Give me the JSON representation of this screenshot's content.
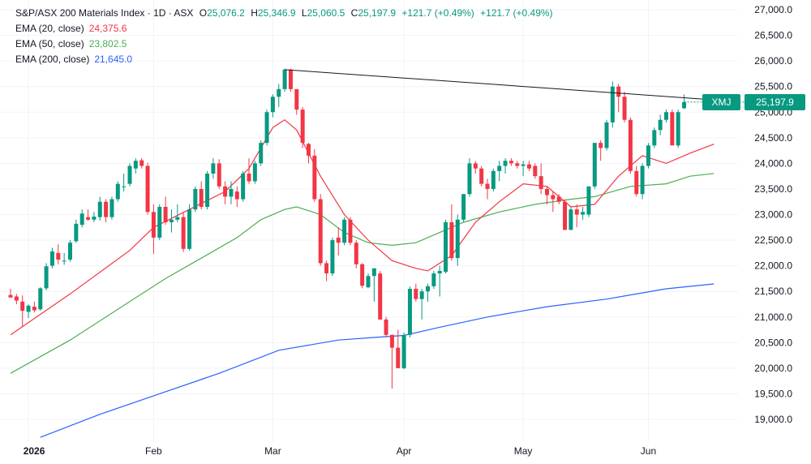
{
  "legend": {
    "title": "S&P/ASX 200 Materials Index · 1D · ASX",
    "open_key": "O",
    "open": "25,076.2",
    "high_key": "H",
    "high": "25,346.9",
    "low_key": "L",
    "low": "25,060.5",
    "close_key": "C",
    "close": "25,197.9",
    "change1": "+121.7 (+0.49%)",
    "change2": "+121.7 (+0.49%)",
    "ema20_label": "EMA (20, close)",
    "ema20_value": "24,375.6",
    "ema50_label": "EMA (50, close)",
    "ema50_value": "23,802.5",
    "ema200_label": "EMA (200, close)",
    "ema200_value": "21,645.0"
  },
  "price_tag": {
    "symbol": "XMJ",
    "value": "25,197.9"
  },
  "colors": {
    "up": "#089981",
    "down": "#f23645",
    "ema20": "#f23645",
    "ema50": "#4caf50",
    "ema200": "#2962ff",
    "trendline": "#131722",
    "legend_values_up": "#089981"
  },
  "chart_data": {
    "type": "candlestick",
    "y_ticks": [
      "27,000.0",
      "26,500.0",
      "26,000.0",
      "25,500.0",
      "25,000.0",
      "24,500.0",
      "24,000.0",
      "23,500.0",
      "23,000.0",
      "22,500.0",
      "22,000.0",
      "21,500.0",
      "21,000.0",
      "20,500.0",
      "20,000.0",
      "19,500.0",
      "19,000.0"
    ],
    "y_tick_values": [
      27000,
      26500,
      26000,
      25500,
      25000,
      24500,
      24000,
      23500,
      23000,
      22500,
      22000,
      21500,
      21000,
      20500,
      20000,
      19500,
      19000
    ],
    "ylim": [
      18650,
      27150
    ],
    "x_ticks": [
      {
        "label": "2026",
        "bar": 3,
        "bold": true
      },
      {
        "label": "Feb",
        "bar": 24,
        "bold": false
      },
      {
        "label": "Mar",
        "bar": 44,
        "bold": false
      },
      {
        "label": "Apr",
        "bar": 66,
        "bold": false
      },
      {
        "label": "May",
        "bar": 86,
        "bold": false
      },
      {
        "label": "Jun",
        "bar": 107,
        "bold": false
      }
    ],
    "candles": [
      {
        "o": 21430,
        "h": 21550,
        "l": 21380,
        "c": 21380
      },
      {
        "o": 21400,
        "h": 21450,
        "l": 21250,
        "c": 21320
      },
      {
        "o": 21300,
        "h": 21420,
        "l": 20800,
        "c": 21120
      },
      {
        "o": 21100,
        "h": 21250,
        "l": 20980,
        "c": 21220
      },
      {
        "o": 21200,
        "h": 21300,
        "l": 21090,
        "c": 21130
      },
      {
        "o": 21150,
        "h": 21580,
        "l": 21120,
        "c": 21560
      },
      {
        "o": 21560,
        "h": 22050,
        "l": 21520,
        "c": 21990
      },
      {
        "o": 22000,
        "h": 22350,
        "l": 21950,
        "c": 22280
      },
      {
        "o": 22250,
        "h": 22420,
        "l": 22030,
        "c": 22120
      },
      {
        "o": 22100,
        "h": 22250,
        "l": 22020,
        "c": 22100
      },
      {
        "o": 22120,
        "h": 22500,
        "l": 22080,
        "c": 22450
      },
      {
        "o": 22480,
        "h": 22900,
        "l": 22450,
        "c": 22820
      },
      {
        "o": 22800,
        "h": 23100,
        "l": 22750,
        "c": 23020
      },
      {
        "o": 22950,
        "h": 23100,
        "l": 22880,
        "c": 22900
      },
      {
        "o": 22900,
        "h": 23050,
        "l": 22850,
        "c": 22960
      },
      {
        "o": 22950,
        "h": 23350,
        "l": 22880,
        "c": 23250
      },
      {
        "o": 23250,
        "h": 23300,
        "l": 22850,
        "c": 22950
      },
      {
        "o": 22950,
        "h": 23350,
        "l": 22900,
        "c": 23300
      },
      {
        "o": 23300,
        "h": 23650,
        "l": 23250,
        "c": 23600
      },
      {
        "o": 23550,
        "h": 23800,
        "l": 23450,
        "c": 23550
      },
      {
        "o": 23600,
        "h": 24000,
        "l": 23550,
        "c": 23950
      },
      {
        "o": 23900,
        "h": 24100,
        "l": 23800,
        "c": 24050
      },
      {
        "o": 24060,
        "h": 24100,
        "l": 23900,
        "c": 23950
      },
      {
        "o": 23950,
        "h": 24010,
        "l": 23000,
        "c": 23050
      },
      {
        "o": 23050,
        "h": 23200,
        "l": 22230,
        "c": 22550
      },
      {
        "o": 22550,
        "h": 23200,
        "l": 22500,
        "c": 23150
      },
      {
        "o": 23150,
        "h": 23350,
        "l": 22800,
        "c": 22850
      },
      {
        "o": 22850,
        "h": 23100,
        "l": 22650,
        "c": 22900
      },
      {
        "o": 22900,
        "h": 23200,
        "l": 22850,
        "c": 22950
      },
      {
        "o": 22950,
        "h": 23050,
        "l": 22270,
        "c": 22330
      },
      {
        "o": 22330,
        "h": 23200,
        "l": 22300,
        "c": 23100
      },
      {
        "o": 23100,
        "h": 23550,
        "l": 23050,
        "c": 23500
      },
      {
        "o": 23500,
        "h": 23650,
        "l": 23100,
        "c": 23150
      },
      {
        "o": 23150,
        "h": 23850,
        "l": 23100,
        "c": 23800
      },
      {
        "o": 23800,
        "h": 24100,
        "l": 23700,
        "c": 24000
      },
      {
        "o": 24000,
        "h": 24080,
        "l": 23500,
        "c": 23550
      },
      {
        "o": 23550,
        "h": 23650,
        "l": 23200,
        "c": 23350
      },
      {
        "o": 23350,
        "h": 23650,
        "l": 23200,
        "c": 23500
      },
      {
        "o": 23450,
        "h": 23550,
        "l": 23150,
        "c": 23300
      },
      {
        "o": 23300,
        "h": 23850,
        "l": 23250,
        "c": 23800
      },
      {
        "o": 23800,
        "h": 24100,
        "l": 23600,
        "c": 23650
      },
      {
        "o": 23650,
        "h": 24050,
        "l": 23600,
        "c": 24000
      },
      {
        "o": 24000,
        "h": 24450,
        "l": 23950,
        "c": 24400
      },
      {
        "o": 24400,
        "h": 25050,
        "l": 24350,
        "c": 25000
      },
      {
        "o": 25000,
        "h": 25350,
        "l": 24900,
        "c": 25300
      },
      {
        "o": 25300,
        "h": 25550,
        "l": 25100,
        "c": 25450
      },
      {
        "o": 25450,
        "h": 25850,
        "l": 25400,
        "c": 25830
      },
      {
        "o": 25830,
        "h": 25850,
        "l": 25400,
        "c": 25450
      },
      {
        "o": 25450,
        "h": 25450,
        "l": 24950,
        "c": 25050
      },
      {
        "o": 25050,
        "h": 25100,
        "l": 24300,
        "c": 24400
      },
      {
        "o": 24380,
        "h": 24400,
        "l": 24000,
        "c": 24150
      },
      {
        "o": 24150,
        "h": 24280,
        "l": 23250,
        "c": 23300
      },
      {
        "o": 23300,
        "h": 23400,
        "l": 22000,
        "c": 22050
      },
      {
        "o": 22050,
        "h": 22100,
        "l": 21700,
        "c": 21850
      },
      {
        "o": 21850,
        "h": 22550,
        "l": 21800,
        "c": 22500
      },
      {
        "o": 22550,
        "h": 22750,
        "l": 22200,
        "c": 22450
      },
      {
        "o": 22450,
        "h": 22950,
        "l": 22400,
        "c": 22900
      },
      {
        "o": 22900,
        "h": 22950,
        "l": 22400,
        "c": 22450
      },
      {
        "o": 22450,
        "h": 22500,
        "l": 21950,
        "c": 22030
      },
      {
        "o": 22030,
        "h": 22050,
        "l": 21560,
        "c": 21610
      },
      {
        "o": 21580,
        "h": 21850,
        "l": 21560,
        "c": 21800
      },
      {
        "o": 21800,
        "h": 21950,
        "l": 21300,
        "c": 21950
      },
      {
        "o": 21850,
        "h": 21900,
        "l": 20950,
        "c": 20950
      },
      {
        "o": 20950,
        "h": 21000,
        "l": 20600,
        "c": 20650
      },
      {
        "o": 20650,
        "h": 20660,
        "l": 19600,
        "c": 20400
      },
      {
        "o": 20400,
        "h": 20750,
        "l": 20000,
        "c": 20000
      },
      {
        "o": 20000,
        "h": 20700,
        "l": 19980,
        "c": 20650
      },
      {
        "o": 20650,
        "h": 21600,
        "l": 20600,
        "c": 21550
      },
      {
        "o": 21550,
        "h": 21650,
        "l": 21300,
        "c": 21350
      },
      {
        "o": 21350,
        "h": 21550,
        "l": 20950,
        "c": 21500
      },
      {
        "o": 21500,
        "h": 21650,
        "l": 21300,
        "c": 21600
      },
      {
        "o": 21600,
        "h": 21900,
        "l": 21550,
        "c": 21850
      },
      {
        "o": 21850,
        "h": 22000,
        "l": 21400,
        "c": 21900
      },
      {
        "o": 21880,
        "h": 22900,
        "l": 21850,
        "c": 22850
      },
      {
        "o": 22850,
        "h": 23200,
        "l": 22100,
        "c": 22150
      },
      {
        "o": 22150,
        "h": 23000,
        "l": 22000,
        "c": 22900
      },
      {
        "o": 22900,
        "h": 23400,
        "l": 22850,
        "c": 23400
      },
      {
        "o": 23400,
        "h": 24100,
        "l": 23350,
        "c": 24000
      },
      {
        "o": 24000,
        "h": 24050,
        "l": 23800,
        "c": 23900
      },
      {
        "o": 23900,
        "h": 23950,
        "l": 23550,
        "c": 23600
      },
      {
        "o": 23600,
        "h": 23700,
        "l": 23300,
        "c": 23500
      },
      {
        "o": 23500,
        "h": 23900,
        "l": 23450,
        "c": 23850
      },
      {
        "o": 23850,
        "h": 24050,
        "l": 23650,
        "c": 23950
      },
      {
        "o": 23950,
        "h": 24100,
        "l": 23800,
        "c": 24050
      },
      {
        "o": 24050,
        "h": 24100,
        "l": 23950,
        "c": 24000
      },
      {
        "o": 24000,
        "h": 24050,
        "l": 23900,
        "c": 23950
      },
      {
        "o": 23950,
        "h": 24050,
        "l": 23750,
        "c": 23980
      },
      {
        "o": 23980,
        "h": 24050,
        "l": 23850,
        "c": 23900
      },
      {
        "o": 23950,
        "h": 24000,
        "l": 23700,
        "c": 23750
      },
      {
        "o": 23750,
        "h": 24000,
        "l": 23400,
        "c": 23500
      },
      {
        "o": 23500,
        "h": 23550,
        "l": 23200,
        "c": 23380
      },
      {
        "o": 23380,
        "h": 23450,
        "l": 23050,
        "c": 23300
      },
      {
        "o": 23350,
        "h": 23400,
        "l": 23200,
        "c": 23250
      },
      {
        "o": 23250,
        "h": 23300,
        "l": 22700,
        "c": 22700
      },
      {
        "o": 22700,
        "h": 23150,
        "l": 22700,
        "c": 23100
      },
      {
        "o": 23100,
        "h": 23200,
        "l": 22750,
        "c": 23000
      },
      {
        "o": 23000,
        "h": 23150,
        "l": 22900,
        "c": 23050
      },
      {
        "o": 23000,
        "h": 23550,
        "l": 22950,
        "c": 23550
      },
      {
        "o": 23550,
        "h": 24350,
        "l": 23500,
        "c": 24400
      },
      {
        "o": 24400,
        "h": 24450,
        "l": 24050,
        "c": 24300
      },
      {
        "o": 24300,
        "h": 24850,
        "l": 24250,
        "c": 24800
      },
      {
        "o": 24800,
        "h": 25600,
        "l": 24700,
        "c": 25500
      },
      {
        "o": 25500,
        "h": 25550,
        "l": 25000,
        "c": 25300
      },
      {
        "o": 25300,
        "h": 25400,
        "l": 24800,
        "c": 24850
      },
      {
        "o": 24850,
        "h": 24900,
        "l": 23800,
        "c": 23850
      },
      {
        "o": 23850,
        "h": 23950,
        "l": 23350,
        "c": 23400
      },
      {
        "o": 23400,
        "h": 24000,
        "l": 23300,
        "c": 23950
      },
      {
        "o": 23950,
        "h": 24400,
        "l": 23900,
        "c": 24350
      },
      {
        "o": 24350,
        "h": 24700,
        "l": 24300,
        "c": 24650
      },
      {
        "o": 24650,
        "h": 24950,
        "l": 24550,
        "c": 24850
      },
      {
        "o": 24850,
        "h": 25050,
        "l": 24800,
        "c": 25000
      },
      {
        "o": 25000,
        "h": 25050,
        "l": 24350,
        "c": 24350
      },
      {
        "o": 24350,
        "h": 25050,
        "l": 24300,
        "c": 25000
      },
      {
        "o": 25076.2,
        "h": 25346.9,
        "l": 25060.5,
        "c": 25197.9
      }
    ],
    "ema20": [
      [
        0,
        20650
      ],
      [
        10,
        21450
      ],
      [
        20,
        22300
      ],
      [
        24,
        22750
      ],
      [
        30,
        23100
      ],
      [
        36,
        23450
      ],
      [
        40,
        23900
      ],
      [
        44,
        24700
      ],
      [
        46,
        24850
      ],
      [
        48,
        24650
      ],
      [
        52,
        23750
      ],
      [
        56,
        23000
      ],
      [
        60,
        22500
      ],
      [
        64,
        22100
      ],
      [
        68,
        21950
      ],
      [
        70,
        21900
      ],
      [
        74,
        22200
      ],
      [
        78,
        22850
      ],
      [
        82,
        23250
      ],
      [
        86,
        23600
      ],
      [
        90,
        23550
      ],
      [
        94,
        23150
      ],
      [
        98,
        23200
      ],
      [
        102,
        23750
      ],
      [
        106,
        24150
      ],
      [
        110,
        24000
      ],
      [
        114,
        24200
      ],
      [
        118,
        24375.6
      ]
    ],
    "ema50": [
      [
        0,
        19900
      ],
      [
        10,
        20550
      ],
      [
        20,
        21300
      ],
      [
        26,
        21750
      ],
      [
        32,
        22150
      ],
      [
        38,
        22550
      ],
      [
        42,
        22900
      ],
      [
        46,
        23100
      ],
      [
        48,
        23150
      ],
      [
        52,
        23000
      ],
      [
        56,
        22650
      ],
      [
        60,
        22450
      ],
      [
        64,
        22400
      ],
      [
        68,
        22450
      ],
      [
        72,
        22650
      ],
      [
        76,
        22850
      ],
      [
        82,
        23050
      ],
      [
        88,
        23200
      ],
      [
        94,
        23300
      ],
      [
        98,
        23350
      ],
      [
        104,
        23550
      ],
      [
        110,
        23600
      ],
      [
        114,
        23750
      ],
      [
        118,
        23802.5
      ]
    ],
    "ema200": [
      [
        5,
        18650
      ],
      [
        15,
        19100
      ],
      [
        25,
        19500
      ],
      [
        35,
        19900
      ],
      [
        45,
        20350
      ],
      [
        55,
        20550
      ],
      [
        61,
        20600
      ],
      [
        66,
        20640
      ],
      [
        72,
        20800
      ],
      [
        80,
        21000
      ],
      [
        90,
        21200
      ],
      [
        100,
        21350
      ],
      [
        110,
        21550
      ],
      [
        118,
        21645
      ]
    ],
    "trendline": [
      [
        46,
        25830
      ],
      [
        118,
        25240
      ]
    ]
  }
}
